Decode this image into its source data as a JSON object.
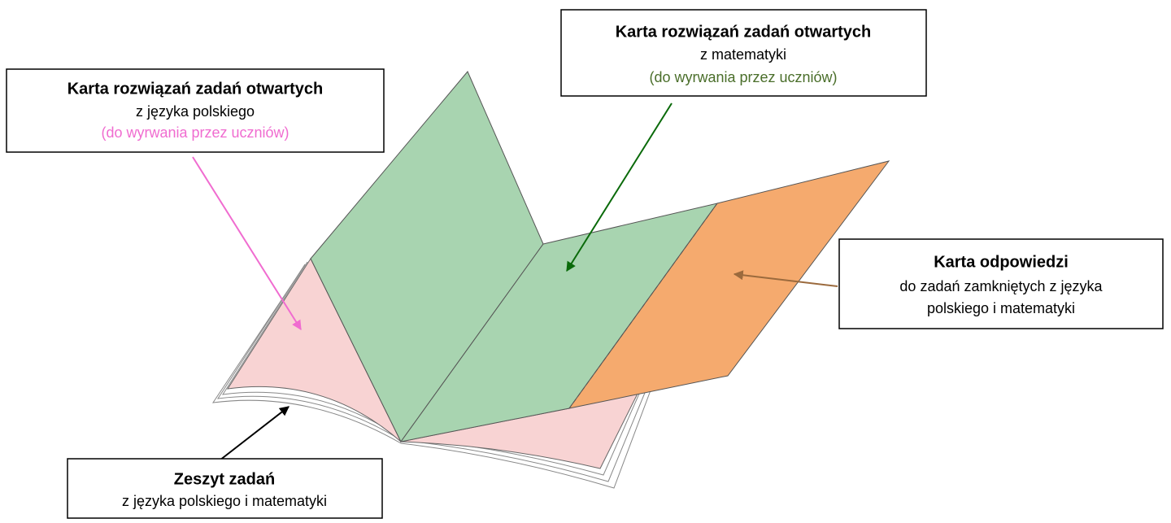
{
  "callouts": [
    {
      "title": "Karta rozwiązań zadań otwartych",
      "lines": [
        "z języka polskiego"
      ],
      "note": "(do wyrwania przez uczniów)"
    },
    {
      "title": "Karta rozwiązań zadań otwartych",
      "lines": [
        "z matematyki"
      ],
      "note": "(do wyrwania przez uczniów)"
    },
    {
      "title": "Karta odpowiedzi",
      "lines": [
        "do zadań zamkniętych z języka",
        "polskiego i matematyki"
      ]
    },
    {
      "title": "Zeszyt zadań",
      "lines": [
        "z języka polskiego i matematyki"
      ]
    }
  ]
}
